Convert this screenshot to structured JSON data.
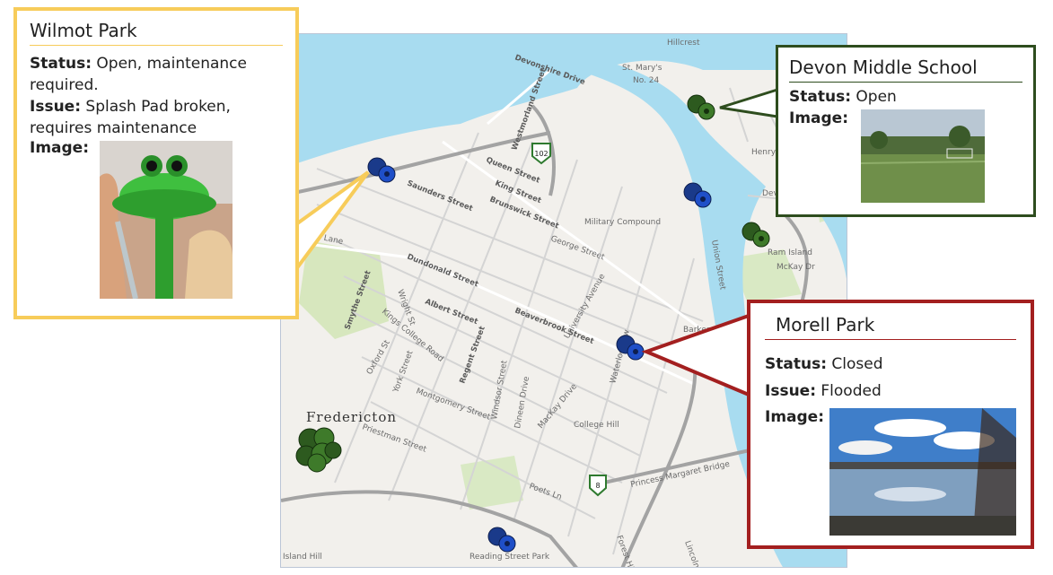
{
  "map": {
    "city_label": "Fredericton",
    "place_labels": [
      "St. Mary's",
      "No. 24",
      "Devon",
      "Henry Park",
      "Ram Island",
      "McKay Dr",
      "Barkers Point",
      "College Hill",
      "Military Compound",
      "Reading Street Park",
      "Island Hill",
      "Hillcrest"
    ],
    "street_labels": [
      "Devonshire Drive",
      "Westmorland Street",
      "Queen Street",
      "King Street",
      "Brunswick Street",
      "Saunders Street",
      "Dundonald Street",
      "Albert Street",
      "Beaverbrook Street",
      "Regent Street",
      "Smythe Street",
      "Kings College Road",
      "York Street",
      "Montgomery Street",
      "Priestman Street",
      "Union Street",
      "Waterloo Row",
      "George Street",
      "University Avenue",
      "Windsor Street",
      "Dineen Drive",
      "MacKay Drive",
      "Princess Margaret Bridge",
      "Forest Hill",
      "Lincoln",
      "Poets Ln",
      "Wright St",
      "Oxford St",
      "Aberdeen Lane"
    ],
    "route_shields": [
      "102",
      "8"
    ],
    "colors": {
      "water": "#a8dcf0",
      "land": "#f2f0ec",
      "park": "#cfe5b3",
      "road": "#c9c9c9",
      "highway": "#9a9a9a"
    }
  },
  "popups": {
    "wilmot": {
      "title": "Wilmot Park",
      "status_label": "Status:",
      "status_value": "Open, maintenance required.",
      "issue_label": "Issue:",
      "issue_value": "Splash Pad broken, requires maintenance",
      "image_label": "Image:",
      "border_color": "#f7cc5a"
    },
    "devon": {
      "title": "Devon Middle School",
      "status_label": "Status:",
      "status_value": "Open",
      "image_label": "Image:",
      "border_color": "#2e4d1e"
    },
    "morell": {
      "title": "Morell Park",
      "status_label": "Status:",
      "status_value": "Closed",
      "issue_label": "Issue:",
      "issue_value": "Flooded",
      "image_label": "Image:",
      "border_color": "#a31f1f"
    }
  },
  "markers": [
    {
      "name": "wilmot-park",
      "status": "maintenance",
      "icon": "soccer-ball-icon"
    },
    {
      "name": "devon-middle-school",
      "status": "open",
      "icon": "soccer-ball-icon"
    },
    {
      "name": "carleton-park",
      "status": "maintenance",
      "icon": "soccer-ball-icon"
    },
    {
      "name": "south-devon",
      "status": "open",
      "icon": "soccer-ball-icon"
    },
    {
      "name": "morell-park",
      "status": "closed",
      "icon": "soccer-ball-icon"
    },
    {
      "name": "fredericton-cluster",
      "status": "open",
      "icon": "soccer-ball-icon"
    },
    {
      "name": "reading-street-park",
      "status": "maintenance",
      "icon": "soccer-ball-icon"
    }
  ]
}
